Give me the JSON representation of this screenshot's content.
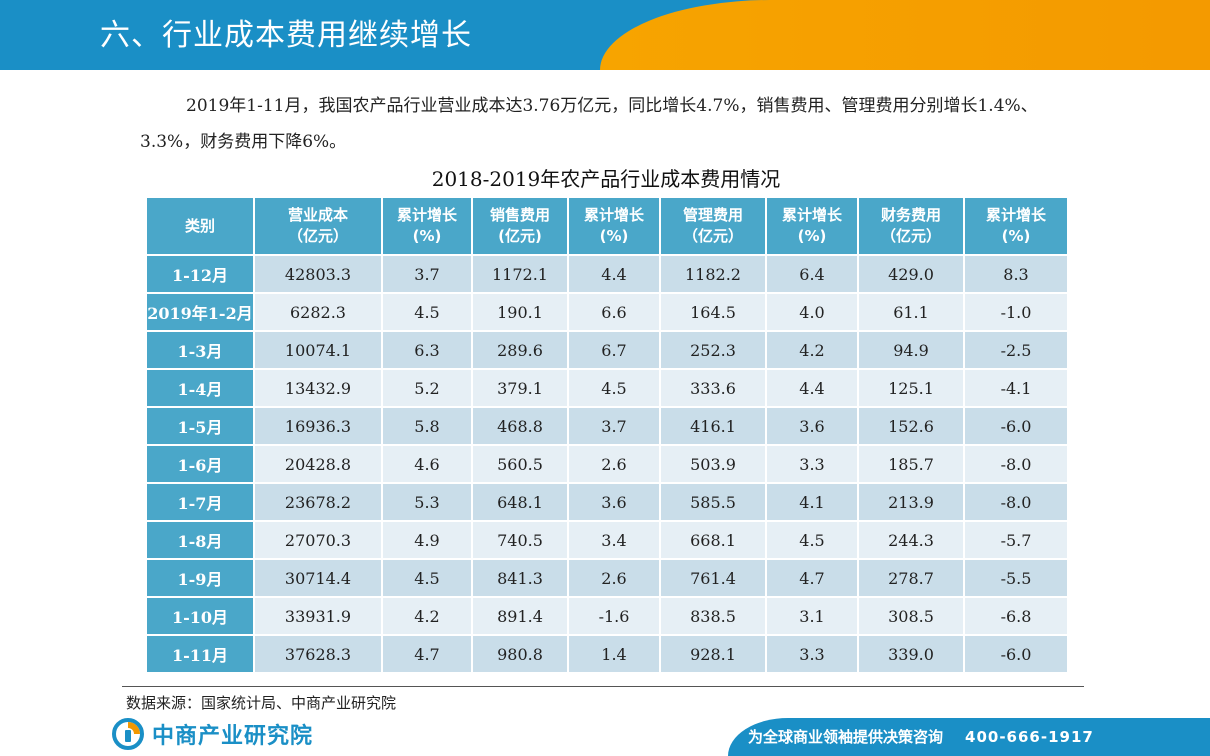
{
  "header": {
    "title": "六、行业成本费用继续增长"
  },
  "intro": {
    "text": "2019年1-11月，我国农产品行业营业成本达3.76万亿元，同比增长4.7%，销售费用、管理费用分别增长1.4%、3.3%，财务费用下降6%。"
  },
  "table": {
    "title": "2018-2019年农产品行业成本费用情况",
    "headers": [
      {
        "line1": "类别",
        "line2": ""
      },
      {
        "line1": "营业成本",
        "line2": "（亿元）"
      },
      {
        "line1": "累计增长",
        "line2": "(%)"
      },
      {
        "line1": "销售费用",
        "line2": "(亿元)"
      },
      {
        "line1": "累计增长",
        "line2": "(%)"
      },
      {
        "line1": "管理费用",
        "line2": "（亿元）"
      },
      {
        "line1": "累计增长",
        "line2": "(%)"
      },
      {
        "line1": "财务费用",
        "line2": "（亿元）"
      },
      {
        "line1": "累计增长",
        "line2": "(%)"
      }
    ],
    "rows": [
      [
        "1-12月",
        "42803.3",
        "3.7",
        "1172.1",
        "4.4",
        "1182.2",
        "6.4",
        "429.0",
        "8.3"
      ],
      [
        "2019年1-2月",
        "6282.3",
        "4.5",
        "190.1",
        "6.6",
        "164.5",
        "4.0",
        "61.1",
        "-1.0"
      ],
      [
        "1-3月",
        "10074.1",
        "6.3",
        "289.6",
        "6.7",
        "252.3",
        "4.2",
        "94.9",
        "-2.5"
      ],
      [
        "1-4月",
        "13432.9",
        "5.2",
        "379.1",
        "4.5",
        "333.6",
        "4.4",
        "125.1",
        "-4.1"
      ],
      [
        "1-5月",
        "16936.3",
        "5.8",
        "468.8",
        "3.7",
        "416.1",
        "3.6",
        "152.6",
        "-6.0"
      ],
      [
        "1-6月",
        "20428.8",
        "4.6",
        "560.5",
        "2.6",
        "503.9",
        "3.3",
        "185.7",
        "-8.0"
      ],
      [
        "1-7月",
        "23678.2",
        "5.3",
        "648.1",
        "3.6",
        "585.5",
        "4.1",
        "213.9",
        "-8.0"
      ],
      [
        "1-8月",
        "27070.3",
        "4.9",
        "740.5",
        "3.4",
        "668.1",
        "4.5",
        "244.3",
        "-5.7"
      ],
      [
        "1-9月",
        "30714.4",
        "4.5",
        "841.3",
        "2.6",
        "761.4",
        "4.7",
        "278.7",
        "-5.5"
      ],
      [
        "1-10月",
        "33931.9",
        "4.2",
        "891.4",
        "-1.6",
        "838.5",
        "3.1",
        "308.5",
        "-6.8"
      ],
      [
        "1-11月",
        "37628.3",
        "4.7",
        "980.8",
        "1.4",
        "928.1",
        "3.3",
        "339.0",
        "-6.0"
      ]
    ]
  },
  "source": {
    "text": "数据来源：国家统计局、中商产业研究院"
  },
  "footer": {
    "logo_text": "中商产业研究院",
    "slogan": "为全球商业领袖提供决策咨询",
    "phone": "400-666-1917",
    "logo_icon": "zhongshang-logo-icon"
  },
  "colors": {
    "brand_blue": "#1a8fc6",
    "brand_orange": "#f39800",
    "table_header": "#4aa7c9",
    "row_dark": "#c9dde9",
    "row_light": "#e6eff5"
  }
}
